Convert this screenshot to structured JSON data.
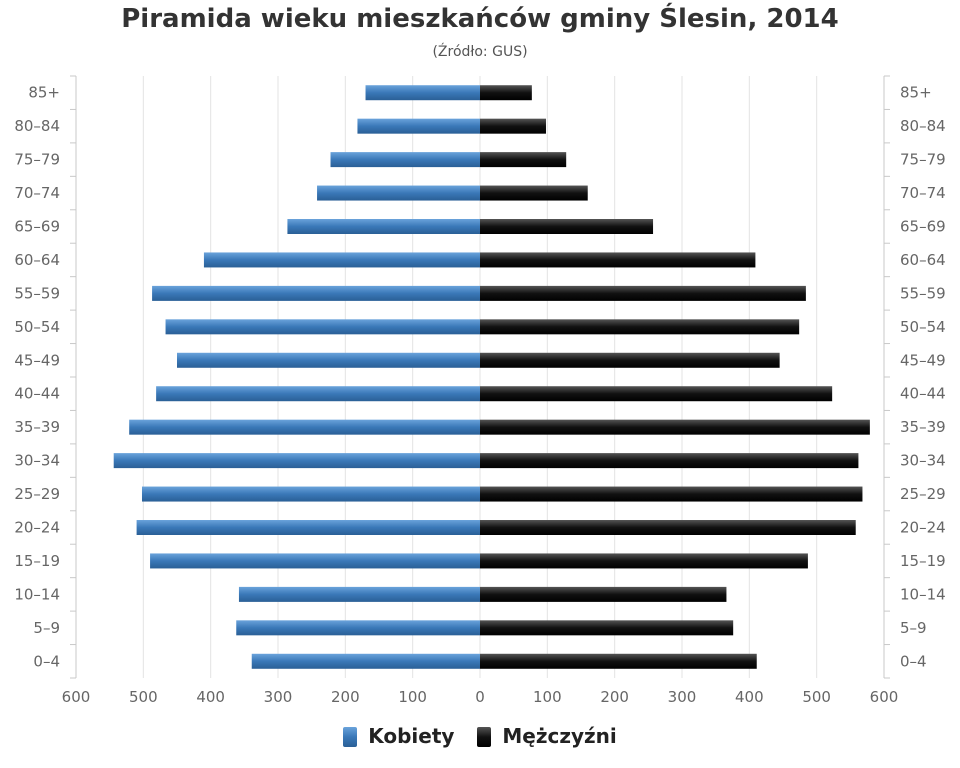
{
  "chart_data": {
    "type": "bar",
    "orientation": "horizontal-population-pyramid",
    "title": "Piramida wieku mieszkańców gminy Ślesin, 2014",
    "subtitle": "(Źródło: GUS)",
    "categories": [
      "85+",
      "80–84",
      "75–79",
      "70–74",
      "65–69",
      "60–64",
      "55–59",
      "50–54",
      "45–49",
      "40–44",
      "35–39",
      "30–34",
      "25–29",
      "20–24",
      "15–19",
      "10–14",
      "5–9",
      "0–4"
    ],
    "series": [
      {
        "name": "Kobiety",
        "color": "#3a78b8",
        "values": [
          170,
          182,
          222,
          242,
          286,
          410,
          487,
          467,
          450,
          481,
          521,
          544,
          502,
          510,
          490,
          358,
          362,
          339
        ]
      },
      {
        "name": "Mężczyźni",
        "color": "#1a1a1a",
        "values": [
          77,
          98,
          128,
          160,
          257,
          409,
          484,
          474,
          445,
          523,
          579,
          562,
          568,
          558,
          487,
          366,
          376,
          411
        ]
      }
    ],
    "xaxis": {
      "ticks": [
        600,
        500,
        400,
        300,
        200,
        100,
        0,
        100,
        200,
        300,
        400,
        500,
        600
      ],
      "range": [
        -600,
        600
      ]
    },
    "grid": true,
    "legend_position": "bottom-center"
  }
}
